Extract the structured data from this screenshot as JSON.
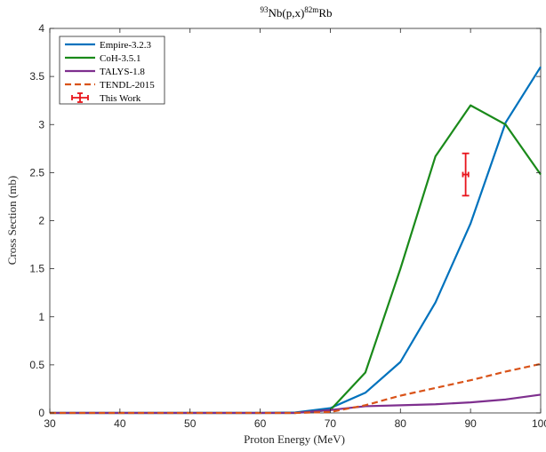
{
  "chart_data": {
    "type": "line",
    "title": {
      "pre": "93",
      "mid": "Nb(p,x)",
      "sup2": "82m",
      "post": "Rb"
    },
    "xlabel": "Proton Energy (MeV)",
    "ylabel": "Cross Section (mb)",
    "xlim": [
      30,
      100
    ],
    "ylim": [
      0,
      4
    ],
    "xticks": [
      30,
      40,
      50,
      60,
      70,
      80,
      90,
      100
    ],
    "yticks": [
      0,
      0.5,
      1,
      1.5,
      2,
      2.5,
      3,
      3.5,
      4
    ],
    "xtick_labels": [
      "30",
      "40",
      "50",
      "60",
      "70",
      "80",
      "90",
      "100"
    ],
    "ytick_labels": [
      "0",
      "0.5",
      "1",
      "1.5",
      "2",
      "2.5",
      "3",
      "3.5",
      "4"
    ],
    "grid": false,
    "legend_position": "top-left",
    "series": [
      {
        "name": "Empire-3.2.3",
        "color": "#0072BD",
        "style": "solid",
        "x": [
          30,
          35,
          40,
          45,
          50,
          55,
          60,
          65,
          70,
          75,
          80,
          85,
          90,
          95,
          100
        ],
        "y": [
          0,
          0,
          0,
          0,
          0,
          0,
          0,
          0.005,
          0.05,
          0.21,
          0.53,
          1.15,
          1.97,
          3.02,
          3.6
        ]
      },
      {
        "name": "CoH-3.5.1",
        "color": "#1A8A1A",
        "style": "solid",
        "x": [
          30,
          35,
          40,
          45,
          50,
          55,
          60,
          65,
          70,
          75,
          80,
          85,
          90,
          95,
          100
        ],
        "y": [
          0,
          0,
          0,
          0,
          0,
          0,
          0,
          0,
          0.03,
          0.42,
          1.5,
          2.67,
          3.2,
          3.0,
          2.48
        ]
      },
      {
        "name": "TALYS-1.8",
        "color": "#7E2F8E",
        "style": "solid",
        "x": [
          30,
          35,
          40,
          45,
          50,
          55,
          60,
          65,
          70,
          75,
          80,
          85,
          90,
          95,
          100
        ],
        "y": [
          0,
          0,
          0,
          0,
          0,
          0,
          0,
          0,
          0.03,
          0.07,
          0.08,
          0.09,
          0.11,
          0.14,
          0.19
        ]
      },
      {
        "name": "TENDL-2015",
        "color": "#D95319",
        "style": "dashed",
        "x": [
          30,
          35,
          40,
          45,
          50,
          55,
          60,
          65,
          70,
          75,
          80,
          85,
          90,
          95,
          100
        ],
        "y": [
          0,
          0,
          0,
          0,
          0,
          0,
          0,
          0,
          0.01,
          0.08,
          0.18,
          0.26,
          0.34,
          0.43,
          0.51
        ]
      }
    ],
    "measurement": {
      "name": "This Work",
      "color": "#E8141C",
      "x": 89.3,
      "y": 2.48,
      "yerr_low": 2.26,
      "yerr_high": 2.7,
      "xerr": 0.4
    }
  }
}
